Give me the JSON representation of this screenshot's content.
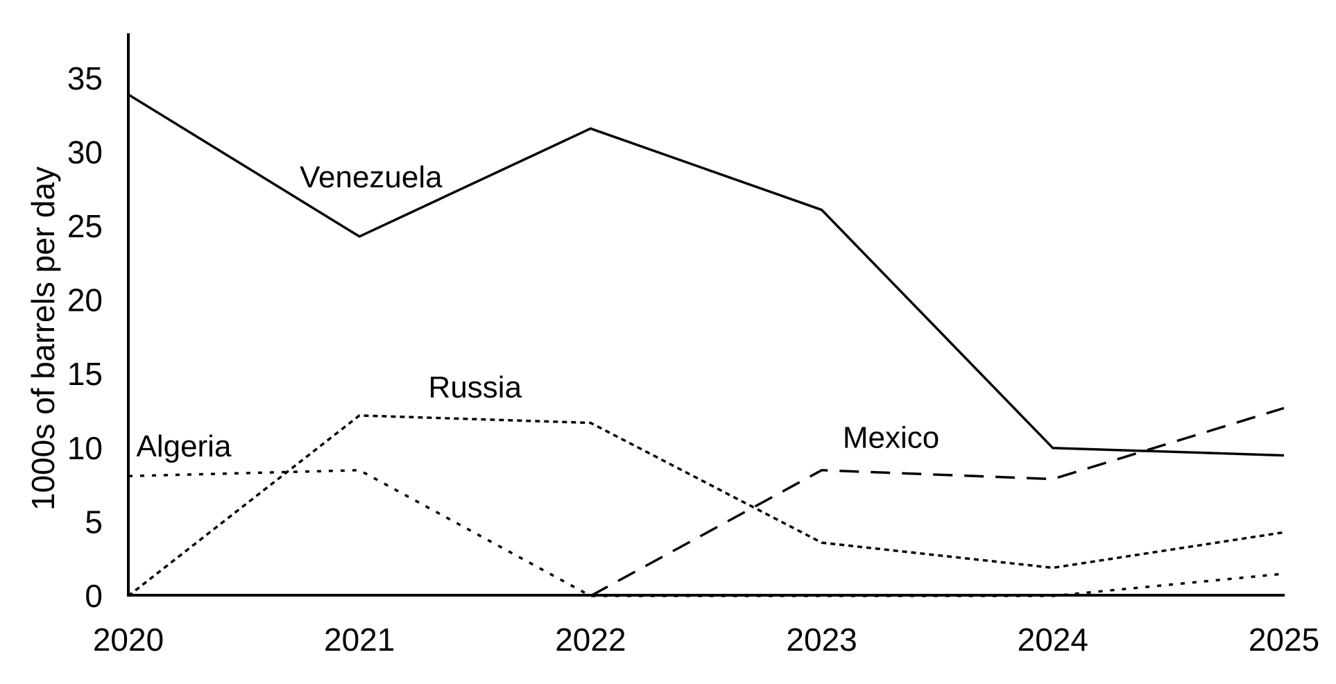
{
  "chart_data": {
    "type": "line",
    "title": "",
    "xlabel": "",
    "ylabel": "1000s of barrels per day",
    "background_color": "#ffffff",
    "line_color": "#000000",
    "text_color": "#000000",
    "grid": false,
    "legend": "inline-series-labels",
    "x": [
      2020,
      2021,
      2022,
      2023,
      2024,
      2025
    ],
    "x_tick_labels": [
      "2020",
      "2021",
      "2022",
      "2023",
      "2024",
      "2025"
    ],
    "y_ticks": [
      0,
      5,
      10,
      15,
      20,
      25,
      30,
      35
    ],
    "y_tick_labels": [
      "0",
      "5",
      "10",
      "15",
      "20",
      "25",
      "30",
      "35"
    ],
    "xlim": [
      2020,
      2025
    ],
    "ylim": [
      0,
      38
    ],
    "series": [
      {
        "name": "Venezuela",
        "line_style": "solid",
        "values": [
          33.9,
          24.3,
          31.6,
          26.1,
          10.0,
          9.5
        ],
        "label_pos": {
          "x": 2021.05,
          "y": 28.3
        }
      },
      {
        "name": "Russia",
        "line_style": "dotted-fine",
        "values": [
          0,
          12.2,
          11.7,
          3.6,
          1.9,
          4.3
        ],
        "label_pos": {
          "x": 2021.5,
          "y": 14.1
        }
      },
      {
        "name": "Algeria",
        "line_style": "dotted-sparse",
        "values": [
          8.1,
          8.5,
          0,
          0,
          0,
          1.5
        ],
        "label_pos": {
          "x": 2020.24,
          "y": 10.1
        }
      },
      {
        "name": "Mexico",
        "line_style": "long-dash",
        "values": [
          null,
          null,
          0,
          8.5,
          7.9,
          12.7
        ],
        "label_pos": {
          "x": 2023.3,
          "y": 10.7
        }
      }
    ]
  }
}
